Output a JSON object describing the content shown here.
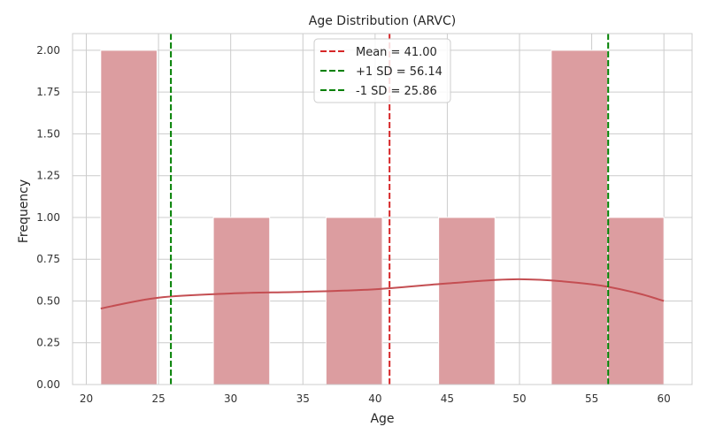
{
  "chart_data": {
    "type": "bar",
    "title": "Age Distribution (ARVC)",
    "xlabel": "Age",
    "ylabel": "Frequency",
    "xlim": [
      19.05,
      61.95
    ],
    "ylim": [
      0,
      2.1
    ],
    "xticks": [
      20,
      25,
      30,
      35,
      40,
      45,
      50,
      55,
      60
    ],
    "xtick_labels": [
      "20",
      "25",
      "30",
      "35",
      "40",
      "45",
      "50",
      "55",
      "60"
    ],
    "yticks": [
      0,
      0.25,
      0.5,
      0.75,
      1.0,
      1.25,
      1.5,
      1.75,
      2.0
    ],
    "ytick_labels": [
      "0.00",
      "0.25",
      "0.50",
      "0.75",
      "1.00",
      "1.25",
      "1.50",
      "1.75",
      "2.00"
    ],
    "grid": true,
    "legend_placement": "top-center",
    "bins": [
      {
        "x0": 21.0,
        "x1": 24.9,
        "count": 2
      },
      {
        "x0": 24.9,
        "x1": 28.8,
        "count": 0
      },
      {
        "x0": 28.8,
        "x1": 32.7,
        "count": 1
      },
      {
        "x0": 32.7,
        "x1": 36.6,
        "count": 0
      },
      {
        "x0": 36.6,
        "x1": 40.5,
        "count": 1
      },
      {
        "x0": 40.5,
        "x1": 44.4,
        "count": 0
      },
      {
        "x0": 44.4,
        "x1": 48.3,
        "count": 1
      },
      {
        "x0": 48.3,
        "x1": 52.2,
        "count": 0
      },
      {
        "x0": 52.2,
        "x1": 56.1,
        "count": 2
      },
      {
        "x0": 56.1,
        "x1": 60.0,
        "count": 1
      }
    ],
    "kde": {
      "x": [
        21,
        25,
        30,
        35,
        40,
        45,
        50,
        55,
        58,
        60
      ],
      "y": [
        0.455,
        0.52,
        0.545,
        0.555,
        0.57,
        0.605,
        0.63,
        0.6,
        0.55,
        0.5
      ]
    },
    "reference_lines": [
      {
        "label": "Mean = 41.00",
        "x": 41.0,
        "color": "#d62728"
      },
      {
        "label": "+1 SD = 56.14",
        "x": 56.14,
        "color": "#008000"
      },
      {
        "label": "-1 SD = 25.86",
        "x": 25.86,
        "color": "#008000"
      }
    ],
    "colors": {
      "bar_fill": "#dc9da0",
      "bar_stroke": "#ffffff",
      "kde_line": "#c44e52",
      "grid": "#cccccc",
      "axes_border": "#cccccc"
    }
  }
}
